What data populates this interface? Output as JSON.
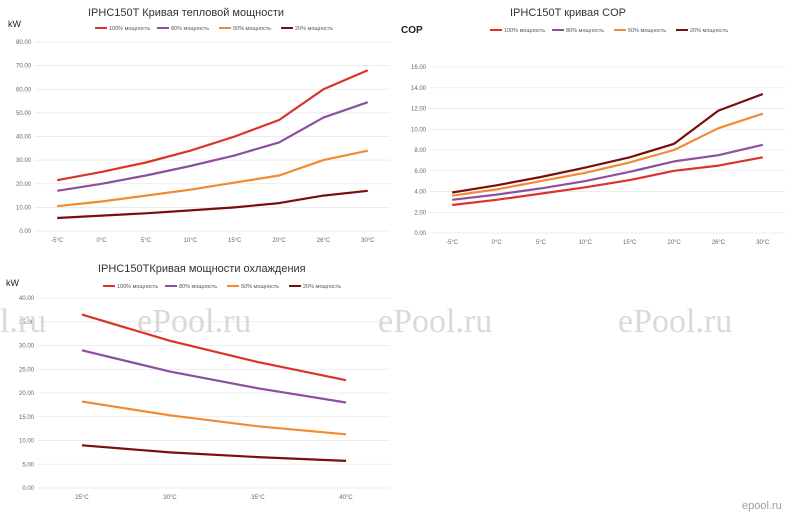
{
  "colors": {
    "s100": "#d9342b",
    "s80": "#8e4f9e",
    "s50": "#f4892f",
    "s20": "#7a0e0e"
  },
  "watermark": {
    "text": "ePool.ru",
    "partial": "l.ru",
    "brand": "epool.ru"
  },
  "chart_data": [
    {
      "type": "line",
      "title": "IPHC150T  Кривая тепловой мощности",
      "unit_label": "kW",
      "categories": [
        "-5°C",
        "0°C",
        "5°C",
        "10°C",
        "15°C",
        "20°C",
        "26°C",
        "30°C"
      ],
      "ylim": [
        0,
        80
      ],
      "yticks": [
        "0.00",
        "10.00",
        "20.00",
        "30.00",
        "40.00",
        "50.00",
        "60.00",
        "70.00",
        "80.00"
      ],
      "grid": true,
      "legend_position": "top",
      "series": [
        {
          "name": "100% мощность",
          "color": "#d9342b",
          "values": [
            21.5,
            25,
            29,
            34,
            40,
            47,
            60,
            68
          ]
        },
        {
          "name": "80% мощность",
          "color": "#8e4f9e",
          "values": [
            17,
            20,
            23.5,
            27.5,
            32,
            37.5,
            48,
            54.5
          ]
        },
        {
          "name": "50% мощность",
          "color": "#f4892f",
          "values": [
            10.5,
            12.5,
            15,
            17.5,
            20.5,
            23.5,
            30,
            34
          ]
        },
        {
          "name": "20% мощность",
          "color": "#7a0e0e",
          "values": [
            5.5,
            6.5,
            7.5,
            8.7,
            10,
            11.8,
            15,
            17
          ]
        }
      ]
    },
    {
      "type": "line",
      "title": "IPHC150T   кривая  COP",
      "unit_label": "COP",
      "categories": [
        "-5°C",
        "0°C",
        "5°C",
        "10°C",
        "15°C",
        "20°C",
        "26°C",
        "30°C"
      ],
      "ylim": [
        0,
        16
      ],
      "yticks": [
        "0.00",
        "2.00",
        "4.00",
        "6.00",
        "8.00",
        "10.00",
        "12.00",
        "14.00",
        "16.00"
      ],
      "grid": true,
      "legend_position": "top",
      "series": [
        {
          "name": "100% мощность",
          "color": "#d9342b",
          "values": [
            2.7,
            3.2,
            3.8,
            4.4,
            5.1,
            6.0,
            6.5,
            7.3
          ]
        },
        {
          "name": "80% мощность",
          "color": "#8e4f9e",
          "values": [
            3.2,
            3.7,
            4.3,
            5.0,
            5.9,
            6.9,
            7.5,
            8.5
          ]
        },
        {
          "name": "50% мощность",
          "color": "#f4892f",
          "values": [
            3.6,
            4.2,
            5.0,
            5.8,
            6.8,
            8.0,
            10.1,
            11.5
          ]
        },
        {
          "name": "20% мощность",
          "color": "#7a0e0e",
          "values": [
            3.9,
            4.6,
            5.4,
            6.3,
            7.3,
            8.6,
            11.8,
            13.4
          ]
        }
      ]
    },
    {
      "type": "line",
      "title": "IPHC150TКривая мощности охлаждения",
      "unit_label": "kW",
      "categories": [
        "25°C",
        "30°C",
        "35°C",
        "40°C"
      ],
      "ylim": [
        0,
        40
      ],
      "yticks": [
        "0.00",
        "5.00",
        "10.00",
        "15.00",
        "20.00",
        "25.00",
        "30.00",
        "35.00",
        "40.00"
      ],
      "grid": true,
      "legend_position": "top",
      "series": [
        {
          "name": "100% мощность",
          "color": "#d9342b",
          "values": [
            36.5,
            31,
            26.5,
            22.7
          ]
        },
        {
          "name": "80% мощность",
          "color": "#8e4f9e",
          "values": [
            29,
            24.5,
            21,
            18
          ]
        },
        {
          "name": "50% мощность",
          "color": "#f4892f",
          "values": [
            18.2,
            15.3,
            13,
            11.3
          ]
        },
        {
          "name": "20% мощность",
          "color": "#7a0e0e",
          "values": [
            9,
            7.5,
            6.5,
            5.7
          ]
        }
      ]
    }
  ]
}
